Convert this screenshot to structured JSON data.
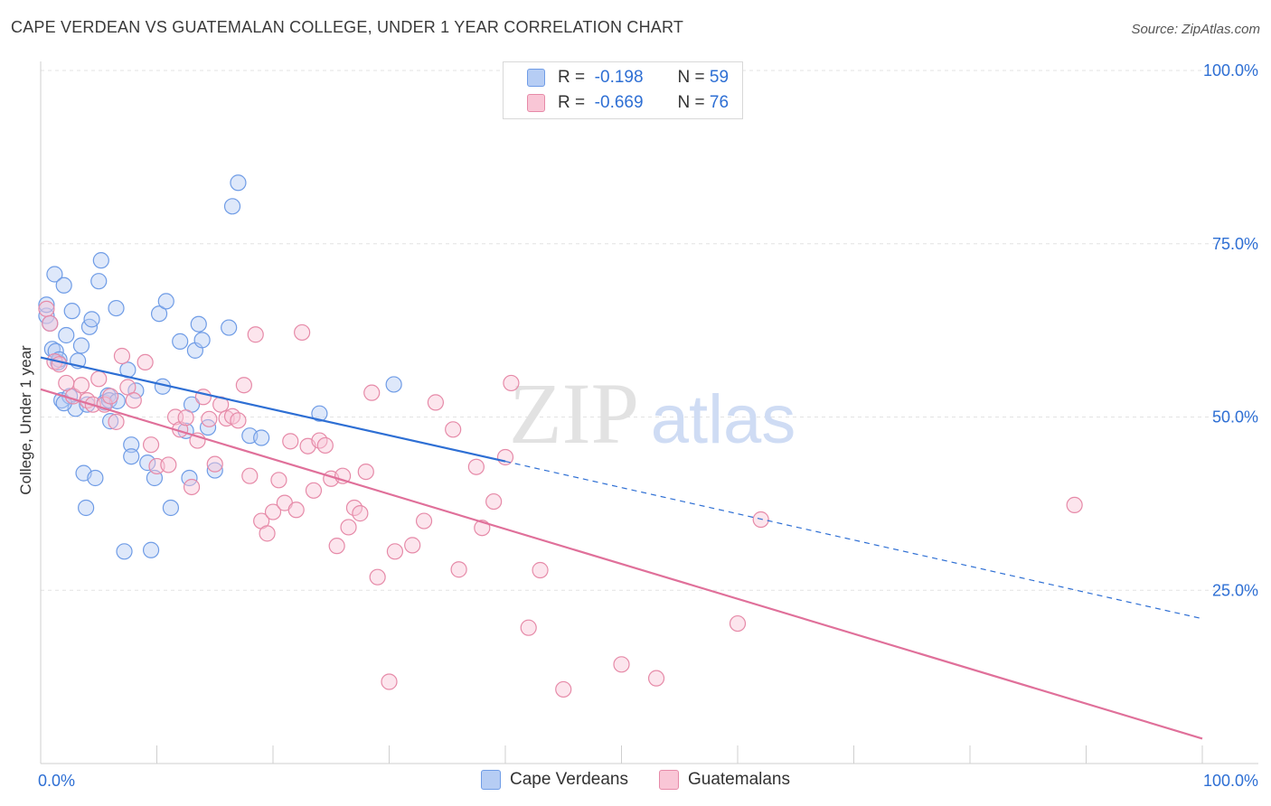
{
  "header": {
    "title": "CAPE VERDEAN VS GUATEMALAN COLLEGE, UNDER 1 YEAR CORRELATION CHART",
    "source": "Source: ZipAtlas.com"
  },
  "legend": {
    "series1": {
      "r_label": "R =",
      "r_value": "-0.198",
      "n_label": "N =",
      "n_value": "59"
    },
    "series2": {
      "r_label": "R =",
      "r_value": "-0.669",
      "n_label": "N =",
      "n_value": "76"
    }
  },
  "watermark": {
    "zip": "ZIP",
    "atlas": "atlas"
  },
  "colors": {
    "blue": "#2e6fd4",
    "pink": "#e0709a",
    "tick_text": "#2e6fd4"
  },
  "chart_data": {
    "type": "scatter",
    "title": "CAPE VERDEAN VS GUATEMALAN COLLEGE, UNDER 1 YEAR CORRELATION CHART",
    "xlabel": "",
    "ylabel": "College, Under 1 year",
    "xlim": [
      0,
      100
    ],
    "ylim": [
      0,
      100
    ],
    "x_tick_labels": [
      "0.0%",
      "100.0%"
    ],
    "y_ticks": [
      25,
      50,
      75,
      100
    ],
    "y_tick_labels": [
      "25.0%",
      "50.0%",
      "75.0%",
      "100.0%"
    ],
    "series": [
      {
        "name": "Cape Verdeans",
        "color": "#2e6fd4",
        "trend": {
          "x0": 0,
          "y0": 58.6,
          "x1": 40,
          "y1": 43.6,
          "dash_to_x": 100,
          "dash_to_y": 20.9
        },
        "points": [
          [
            0.5,
            64.6
          ],
          [
            1.0,
            59.8
          ],
          [
            1.2,
            70.6
          ],
          [
            1.5,
            57.9
          ],
          [
            1.8,
            52.4
          ],
          [
            2.0,
            69.0
          ],
          [
            2.2,
            61.8
          ],
          [
            2.5,
            53.0
          ],
          [
            2.7,
            65.3
          ],
          [
            3.0,
            51.2
          ],
          [
            3.2,
            58.1
          ],
          [
            3.5,
            60.3
          ],
          [
            3.7,
            41.9
          ],
          [
            4.0,
            51.8
          ],
          [
            4.2,
            63.0
          ],
          [
            4.4,
            64.1
          ],
          [
            4.7,
            41.2
          ],
          [
            5.0,
            69.6
          ],
          [
            5.2,
            72.6
          ],
          [
            5.5,
            52.1
          ],
          [
            5.8,
            53.1
          ],
          [
            6.0,
            49.4
          ],
          [
            6.5,
            65.7
          ],
          [
            7.2,
            30.6
          ],
          [
            7.5,
            56.8
          ],
          [
            7.8,
            46.0
          ],
          [
            8.2,
            53.8
          ],
          [
            9.2,
            43.4
          ],
          [
            9.5,
            30.8
          ],
          [
            9.8,
            41.2
          ],
          [
            10.2,
            64.9
          ],
          [
            10.5,
            54.4
          ],
          [
            10.8,
            66.7
          ],
          [
            11.2,
            36.9
          ],
          [
            12.0,
            60.9
          ],
          [
            12.5,
            48.0
          ],
          [
            12.8,
            41.2
          ],
          [
            13.0,
            51.8
          ],
          [
            13.3,
            59.6
          ],
          [
            13.6,
            63.4
          ],
          [
            13.9,
            61.1
          ],
          [
            14.4,
            48.5
          ],
          [
            15.0,
            42.3
          ],
          [
            16.5,
            80.4
          ],
          [
            17.0,
            83.8
          ],
          [
            16.2,
            62.9
          ],
          [
            18.0,
            47.3
          ],
          [
            19.0,
            47.0
          ],
          [
            24.0,
            50.5
          ],
          [
            30.4,
            54.7
          ],
          [
            1.3,
            59.5
          ],
          [
            2.0,
            52.0
          ],
          [
            3.9,
            36.9
          ],
          [
            0.5,
            66.2
          ],
          [
            5.9,
            52.4
          ],
          [
            6.6,
            52.3
          ],
          [
            7.8,
            44.3
          ],
          [
            0.8,
            63.5
          ],
          [
            1.6,
            58.3
          ]
        ]
      },
      {
        "name": "Guatemalans",
        "color": "#e0709a",
        "trend": {
          "x0": 0,
          "y0": 54.0,
          "x1": 100,
          "y1": 3.6
        },
        "points": [
          [
            0.5,
            65.6
          ],
          [
            0.8,
            63.5
          ],
          [
            1.2,
            58.0
          ],
          [
            1.6,
            57.6
          ],
          [
            2.2,
            54.9
          ],
          [
            2.8,
            53.0
          ],
          [
            3.5,
            54.6
          ],
          [
            4.0,
            52.4
          ],
          [
            4.5,
            51.8
          ],
          [
            5.0,
            55.5
          ],
          [
            5.5,
            51.8
          ],
          [
            6.0,
            53.0
          ],
          [
            6.5,
            49.3
          ],
          [
            7.0,
            58.8
          ],
          [
            7.5,
            54.3
          ],
          [
            8.0,
            52.4
          ],
          [
            9.0,
            57.9
          ],
          [
            9.5,
            46.0
          ],
          [
            10.0,
            42.9
          ],
          [
            11.0,
            43.1
          ],
          [
            11.6,
            50.0
          ],
          [
            12.0,
            48.2
          ],
          [
            12.5,
            49.9
          ],
          [
            13.0,
            39.9
          ],
          [
            13.5,
            46.6
          ],
          [
            14.0,
            52.9
          ],
          [
            14.5,
            49.7
          ],
          [
            15.0,
            43.2
          ],
          [
            15.5,
            51.8
          ],
          [
            16.0,
            49.8
          ],
          [
            16.5,
            50.1
          ],
          [
            17.0,
            49.5
          ],
          [
            17.5,
            54.6
          ],
          [
            18.0,
            41.5
          ],
          [
            18.5,
            61.9
          ],
          [
            19.0,
            35.0
          ],
          [
            19.5,
            33.2
          ],
          [
            20.0,
            36.3
          ],
          [
            20.5,
            40.9
          ],
          [
            21.0,
            37.6
          ],
          [
            21.5,
            46.5
          ],
          [
            22.0,
            36.6
          ],
          [
            22.5,
            62.2
          ],
          [
            23.0,
            45.8
          ],
          [
            23.5,
            39.4
          ],
          [
            24.0,
            46.6
          ],
          [
            24.5,
            45.9
          ],
          [
            25.0,
            41.1
          ],
          [
            25.5,
            31.4
          ],
          [
            26.0,
            41.5
          ],
          [
            26.5,
            34.1
          ],
          [
            27.0,
            36.9
          ],
          [
            27.5,
            36.1
          ],
          [
            28.0,
            42.1
          ],
          [
            28.5,
            53.5
          ],
          [
            29.0,
            26.9
          ],
          [
            30.0,
            11.8
          ],
          [
            30.5,
            30.6
          ],
          [
            32.0,
            31.5
          ],
          [
            33.0,
            35.0
          ],
          [
            34.0,
            52.1
          ],
          [
            35.5,
            48.2
          ],
          [
            36.0,
            28.0
          ],
          [
            37.5,
            42.8
          ],
          [
            38.0,
            34.0
          ],
          [
            39.0,
            37.8
          ],
          [
            40.0,
            44.2
          ],
          [
            40.5,
            54.9
          ],
          [
            42.0,
            19.6
          ],
          [
            43.0,
            27.9
          ],
          [
            45.0,
            10.7
          ],
          [
            50.0,
            14.3
          ],
          [
            53.0,
            12.3
          ],
          [
            60.0,
            20.2
          ],
          [
            62.0,
            35.2
          ],
          [
            89.0,
            37.3
          ]
        ]
      }
    ],
    "legend": {
      "entries": [
        "Cape Verdeans",
        "Guatemalans"
      ],
      "placement": "bottom"
    },
    "grid": true
  }
}
